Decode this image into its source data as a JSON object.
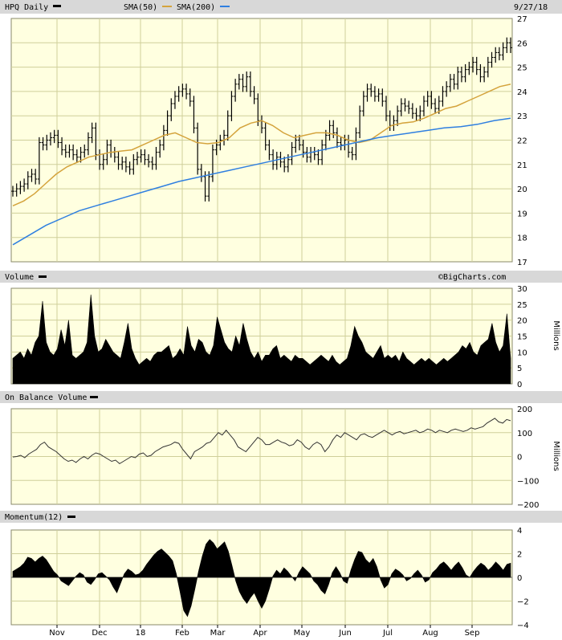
{
  "header": {
    "symbol": "HPQ Daily",
    "sma50_label": "SMA(50)",
    "sma200_label": "SMA(200)",
    "date": "9/27/18",
    "copyright": "©BigCharts.com"
  },
  "colors": {
    "plot_bg": "#ffffe0",
    "header_bg": "#d8d8d8",
    "grid": "#cfcf9a",
    "price": "#000000",
    "sma50": "#d4a33c",
    "sma200": "#2f7fe0"
  },
  "x_axis": {
    "tick_labels": [
      "Nov",
      "Dec",
      "18",
      "Feb",
      "Mar",
      "Apr",
      "May",
      "Jun",
      "Jul",
      "Aug",
      "Sep"
    ]
  },
  "chart_data": [
    {
      "type": "line",
      "title": "HPQ Daily",
      "ylim": [
        17,
        27
      ],
      "y_ticks": [
        17,
        18,
        19,
        20,
        21,
        22,
        23,
        24,
        25,
        26,
        27
      ],
      "grid": true,
      "series": [
        {
          "name": "HPQ Daily",
          "style": "ohlc",
          "values": [
            19.9,
            20.0,
            20.1,
            20.2,
            20.5,
            20.6,
            20.4,
            21.9,
            21.8,
            22.0,
            22.1,
            22.2,
            21.9,
            21.6,
            21.5,
            21.6,
            21.4,
            21.3,
            21.5,
            21.6,
            22.1,
            22.5,
            21.4,
            21.0,
            21.2,
            21.8,
            21.5,
            21.3,
            21.0,
            21.1,
            20.9,
            20.8,
            21.2,
            21.3,
            21.4,
            21.2,
            21.1,
            21.0,
            21.5,
            21.8,
            22.4,
            23.0,
            23.5,
            23.8,
            24.0,
            24.1,
            23.9,
            23.6,
            22.5,
            20.8,
            20.5,
            19.7,
            20.5,
            21.6,
            21.8,
            22.0,
            22.2,
            23.0,
            23.8,
            24.3,
            24.5,
            24.2,
            24.6,
            24.0,
            23.7,
            22.8,
            22.5,
            21.8,
            21.4,
            21.0,
            21.3,
            21.1,
            20.9,
            21.2,
            21.7,
            22.0,
            21.8,
            21.5,
            21.3,
            21.5,
            21.4,
            21.2,
            21.8,
            22.2,
            22.6,
            22.3,
            21.9,
            21.8,
            22.0,
            21.5,
            21.4,
            22.3,
            23.2,
            23.8,
            24.1,
            24.0,
            23.8,
            23.9,
            23.6,
            23.0,
            22.6,
            22.8,
            23.2,
            23.5,
            23.4,
            23.3,
            23.1,
            23.0,
            23.2,
            23.6,
            23.8,
            23.5,
            23.3,
            23.6,
            24.0,
            24.2,
            24.5,
            24.3,
            24.8,
            24.6,
            24.9,
            25.0,
            25.2,
            24.9,
            24.6,
            24.8,
            25.2,
            25.4,
            25.6,
            25.5,
            25.8,
            26.0,
            25.8
          ]
        },
        {
          "name": "SMA(50)",
          "values": [
            19.3,
            19.5,
            19.8,
            20.2,
            20.6,
            20.9,
            21.1,
            21.3,
            21.4,
            21.5,
            21.55,
            21.6,
            21.8,
            22.0,
            22.2,
            22.3,
            22.1,
            21.9,
            21.85,
            21.9,
            22.1,
            22.5,
            22.7,
            22.8,
            22.6,
            22.3,
            22.1,
            22.2,
            22.3,
            22.3,
            22.2,
            22.0,
            21.9,
            22.0,
            22.3,
            22.6,
            22.7,
            22.75,
            22.9,
            23.1,
            23.3,
            23.4,
            23.6,
            23.8,
            24.0,
            24.2,
            24.3
          ]
        },
        {
          "name": "SMA(200)",
          "values": [
            17.7,
            18.1,
            18.5,
            18.8,
            19.1,
            19.3,
            19.5,
            19.7,
            19.9,
            20.1,
            20.3,
            20.45,
            20.6,
            20.75,
            20.9,
            21.05,
            21.2,
            21.35,
            21.5,
            21.65,
            21.8,
            21.95,
            22.1,
            22.2,
            22.3,
            22.4,
            22.5,
            22.55,
            22.65,
            22.8,
            22.9
          ]
        }
      ]
    },
    {
      "type": "area",
      "title": "Volume",
      "ylabel": "Millions",
      "ylim": [
        0,
        30
      ],
      "y_ticks": [
        0,
        5,
        10,
        15,
        20,
        25,
        30
      ],
      "grid": true,
      "series": [
        {
          "name": "Volume",
          "values": [
            8,
            9,
            10,
            8,
            11,
            9,
            13,
            15,
            26,
            13,
            10,
            9,
            11,
            17,
            12,
            20,
            9,
            8,
            9,
            10,
            13,
            28,
            15,
            10,
            11,
            14,
            12,
            10,
            9,
            8,
            13,
            19,
            11,
            8,
            6,
            7,
            8,
            7,
            9,
            10,
            10,
            11,
            12,
            8,
            9,
            11,
            9,
            18,
            12,
            10,
            14,
            13,
            10,
            9,
            12,
            21,
            17,
            13,
            11,
            10,
            15,
            12,
            19,
            14,
            10,
            8,
            10,
            7,
            9,
            9,
            11,
            12,
            8,
            9,
            8,
            7,
            9,
            8,
            8,
            7,
            6,
            7,
            8,
            9,
            8,
            7,
            9,
            7,
            6,
            7,
            8,
            12,
            18,
            15,
            13,
            10,
            9,
            8,
            10,
            12,
            8,
            9,
            8,
            9,
            7,
            10,
            8,
            7,
            6,
            7,
            8,
            7,
            8,
            7,
            6,
            7,
            8,
            7,
            8,
            9,
            10,
            12,
            11,
            13,
            10,
            9,
            12,
            13,
            14,
            19,
            13,
            10,
            12,
            22,
            8
          ]
        }
      ]
    },
    {
      "type": "line",
      "title": "On Balance Volume",
      "ylabel": "Millions",
      "ylim": [
        -200,
        200
      ],
      "y_ticks": [
        -200,
        -100,
        0,
        100,
        200
      ],
      "grid": true,
      "series": [
        {
          "name": "On Balance Volume",
          "values": [
            -2,
            0,
            5,
            -5,
            10,
            20,
            30,
            50,
            60,
            40,
            30,
            20,
            5,
            -10,
            -20,
            -15,
            -25,
            -10,
            0,
            -10,
            5,
            15,
            10,
            0,
            -10,
            -20,
            -15,
            -30,
            -20,
            -10,
            0,
            -5,
            10,
            15,
            0,
            5,
            20,
            30,
            40,
            45,
            50,
            60,
            55,
            30,
            10,
            -10,
            20,
            30,
            40,
            55,
            60,
            80,
            100,
            90,
            110,
            90,
            70,
            40,
            30,
            20,
            40,
            60,
            80,
            70,
            50,
            50,
            60,
            70,
            60,
            55,
            45,
            50,
            70,
            60,
            40,
            30,
            50,
            60,
            50,
            20,
            40,
            70,
            90,
            80,
            100,
            90,
            80,
            70,
            90,
            95,
            85,
            80,
            90,
            100,
            110,
            100,
            90,
            100,
            105,
            95,
            100,
            105,
            110,
            100,
            105,
            115,
            110,
            100,
            110,
            105,
            100,
            110,
            115,
            110,
            105,
            110,
            120,
            115,
            120,
            125,
            140,
            150,
            160,
            145,
            140,
            155,
            150
          ]
        }
      ]
    },
    {
      "type": "area",
      "title": "Momentum(12)",
      "ylim": [
        -4,
        4
      ],
      "y_ticks": [
        -4,
        -2,
        0,
        2,
        4
      ],
      "grid": true,
      "series": [
        {
          "name": "Momentum(12)",
          "values": [
            0.5,
            0.7,
            0.9,
            1.2,
            1.7,
            1.6,
            1.3,
            1.6,
            1.8,
            1.5,
            1.0,
            0.5,
            0.2,
            -0.3,
            -0.5,
            -0.7,
            -0.3,
            0.1,
            0.4,
            0.2,
            -0.4,
            -0.6,
            -0.2,
            0.3,
            0.4,
            0.1,
            -0.2,
            -0.8,
            -1.3,
            -0.5,
            0.3,
            0.7,
            0.5,
            0.2,
            0.3,
            0.6,
            1.1,
            1.5,
            1.9,
            2.2,
            2.4,
            2.1,
            1.8,
            1.4,
            0.3,
            -1.2,
            -2.8,
            -3.3,
            -2.4,
            -1.0,
            0.5,
            1.8,
            2.8,
            3.2,
            2.9,
            2.4,
            2.7,
            3.0,
            2.2,
            1.0,
            -0.3,
            -1.2,
            -1.8,
            -2.2,
            -1.7,
            -1.3,
            -2.0,
            -2.6,
            -2.0,
            -1.0,
            0.1,
            0.6,
            0.3,
            0.8,
            0.5,
            0.1,
            -0.3,
            0.4,
            0.9,
            0.6,
            0.3,
            -0.3,
            -0.6,
            -1.1,
            -1.4,
            -0.6,
            0.4,
            0.9,
            0.4,
            -0.3,
            -0.5,
            0.6,
            1.5,
            2.2,
            2.1,
            1.5,
            1.2,
            1.6,
            0.9,
            -0.2,
            -0.9,
            -0.6,
            0.3,
            0.7,
            0.5,
            0.2,
            -0.3,
            -0.1,
            0.3,
            0.6,
            0.2,
            -0.4,
            -0.2,
            0.4,
            0.7,
            1.1,
            1.3,
            1.0,
            0.6,
            1.0,
            1.3,
            0.8,
            0.2,
            0.0,
            0.5,
            0.9,
            1.2,
            1.0,
            0.6,
            0.9,
            1.3,
            1.0,
            0.6,
            1.1,
            1.2
          ]
        }
      ]
    }
  ],
  "panels": {
    "volume": {
      "title": "Volume",
      "ylabel": "Millions"
    },
    "obv": {
      "title": "On Balance Volume",
      "ylabel": "Millions"
    },
    "momentum": {
      "title": "Momentum(12)"
    }
  }
}
